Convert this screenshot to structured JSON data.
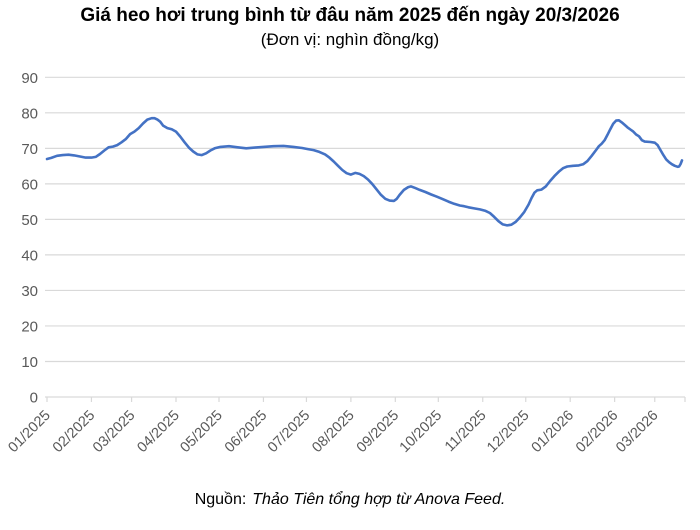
{
  "header": {
    "title": "Giá heo hơi trung bình từ đâu năm 2025 đến ngày 20/3/2026",
    "subtitle": "(Đơn vị: nghìn đồng/kg)"
  },
  "footer": {
    "source_label": "Nguồn:",
    "source_text": "Thảo Tiên tổng hợp từ Anova Feed."
  },
  "chart_data": {
    "type": "line",
    "title": "Giá heo hơi trung bình từ đâu năm 2025 đến ngày 20/3/2026",
    "subtitle": "(Đơn vị: nghìn đồng/kg)",
    "xlabel": "",
    "ylabel": "",
    "unit": "nghìn đồng/kg",
    "ylim": [
      0,
      90
    ],
    "yticks": [
      0,
      10,
      20,
      30,
      40,
      50,
      60,
      70,
      80,
      90
    ],
    "categories": [
      "01/2025",
      "02/2025",
      "03/2025",
      "04/2025",
      "05/2025",
      "06/2025",
      "07/2025",
      "08/2025",
      "09/2025",
      "10/2025",
      "11/2025",
      "12/2025",
      "01/2026",
      "02/2026",
      "03/2026"
    ],
    "x_range": [
      "2025-01-01",
      "2026-03-20"
    ],
    "grid": true,
    "legend": "none",
    "line_color": "#4472c4",
    "grid_color": "#d9d9d9",
    "tick_label_color": "#595959",
    "series": [
      {
        "points": [
          [
            "2025-01-01",
            67.0
          ],
          [
            "2025-01-04",
            67.3
          ],
          [
            "2025-01-08",
            67.9
          ],
          [
            "2025-01-12",
            68.1
          ],
          [
            "2025-01-16",
            68.2
          ],
          [
            "2025-01-20",
            68.0
          ],
          [
            "2025-01-24",
            67.7
          ],
          [
            "2025-01-28",
            67.4
          ],
          [
            "2025-02-01",
            67.4
          ],
          [
            "2025-02-04",
            67.6
          ],
          [
            "2025-02-07",
            68.4
          ],
          [
            "2025-02-10",
            69.4
          ],
          [
            "2025-02-13",
            70.3
          ],
          [
            "2025-02-16",
            70.5
          ],
          [
            "2025-02-19",
            70.9
          ],
          [
            "2025-02-22",
            71.7
          ],
          [
            "2025-02-25",
            72.6
          ],
          [
            "2025-02-28",
            74.0
          ],
          [
            "2025-03-03",
            74.7
          ],
          [
            "2025-03-06",
            75.7
          ],
          [
            "2025-03-09",
            77.0
          ],
          [
            "2025-03-12",
            78.1
          ],
          [
            "2025-03-15",
            78.5
          ],
          [
            "2025-03-17",
            78.5
          ],
          [
            "2025-03-19",
            78.1
          ],
          [
            "2025-03-21",
            77.5
          ],
          [
            "2025-03-23",
            76.4
          ],
          [
            "2025-03-26",
            75.7
          ],
          [
            "2025-03-29",
            75.4
          ],
          [
            "2025-04-01",
            74.7
          ],
          [
            "2025-04-04",
            73.3
          ],
          [
            "2025-04-07",
            71.7
          ],
          [
            "2025-04-10",
            70.2
          ],
          [
            "2025-04-13",
            69.1
          ],
          [
            "2025-04-16",
            68.3
          ],
          [
            "2025-04-19",
            68.1
          ],
          [
            "2025-04-22",
            68.6
          ],
          [
            "2025-04-25",
            69.4
          ],
          [
            "2025-04-28",
            70.0
          ],
          [
            "2025-05-02",
            70.4
          ],
          [
            "2025-05-08",
            70.6
          ],
          [
            "2025-05-14",
            70.3
          ],
          [
            "2025-05-20",
            70.0
          ],
          [
            "2025-05-26",
            70.2
          ],
          [
            "2025-06-01",
            70.4
          ],
          [
            "2025-06-08",
            70.6
          ],
          [
            "2025-06-15",
            70.7
          ],
          [
            "2025-06-22",
            70.4
          ],
          [
            "2025-06-28",
            70.1
          ],
          [
            "2025-07-02",
            69.8
          ],
          [
            "2025-07-06",
            69.5
          ],
          [
            "2025-07-10",
            69.0
          ],
          [
            "2025-07-14",
            68.3
          ],
          [
            "2025-07-17",
            67.4
          ],
          [
            "2025-07-20",
            66.3
          ],
          [
            "2025-07-23",
            65.1
          ],
          [
            "2025-07-26",
            63.9
          ],
          [
            "2025-07-29",
            63.0
          ],
          [
            "2025-08-01",
            62.6
          ],
          [
            "2025-08-04",
            63.1
          ],
          [
            "2025-08-07",
            62.8
          ],
          [
            "2025-08-10",
            62.2
          ],
          [
            "2025-08-13",
            61.2
          ],
          [
            "2025-08-16",
            59.9
          ],
          [
            "2025-08-19",
            58.4
          ],
          [
            "2025-08-22",
            56.9
          ],
          [
            "2025-08-25",
            55.8
          ],
          [
            "2025-08-28",
            55.3
          ],
          [
            "2025-08-31",
            55.2
          ],
          [
            "2025-09-02",
            55.8
          ],
          [
            "2025-09-04",
            56.9
          ],
          [
            "2025-09-07",
            58.3
          ],
          [
            "2025-09-10",
            59.1
          ],
          [
            "2025-09-12",
            59.3
          ],
          [
            "2025-09-15",
            58.8
          ],
          [
            "2025-09-18",
            58.3
          ],
          [
            "2025-09-22",
            57.7
          ],
          [
            "2025-09-26",
            57.0
          ],
          [
            "2025-09-30",
            56.4
          ],
          [
            "2025-10-04",
            55.7
          ],
          [
            "2025-10-08",
            55.0
          ],
          [
            "2025-10-12",
            54.4
          ],
          [
            "2025-10-16",
            53.9
          ],
          [
            "2025-10-19",
            53.7
          ],
          [
            "2025-10-22",
            53.4
          ],
          [
            "2025-10-26",
            53.1
          ],
          [
            "2025-10-30",
            52.8
          ],
          [
            "2025-11-03",
            52.4
          ],
          [
            "2025-11-06",
            51.8
          ],
          [
            "2025-11-09",
            50.7
          ],
          [
            "2025-11-12",
            49.5
          ],
          [
            "2025-11-15",
            48.6
          ],
          [
            "2025-11-18",
            48.3
          ],
          [
            "2025-11-21",
            48.5
          ],
          [
            "2025-11-24",
            49.3
          ],
          [
            "2025-11-27",
            50.6
          ],
          [
            "2025-11-30",
            52.1
          ],
          [
            "2025-12-03",
            54.2
          ],
          [
            "2025-12-05",
            56.0
          ],
          [
            "2025-12-07",
            57.5
          ],
          [
            "2025-12-09",
            58.2
          ],
          [
            "2025-12-12",
            58.4
          ],
          [
            "2025-12-15",
            59.3
          ],
          [
            "2025-12-18",
            60.8
          ],
          [
            "2025-12-21",
            62.2
          ],
          [
            "2025-12-24",
            63.4
          ],
          [
            "2025-12-27",
            64.4
          ],
          [
            "2025-12-30",
            64.9
          ],
          [
            "2026-01-03",
            65.1
          ],
          [
            "2026-01-07",
            65.2
          ],
          [
            "2026-01-10",
            65.5
          ],
          [
            "2026-01-13",
            66.4
          ],
          [
            "2026-01-16",
            67.9
          ],
          [
            "2026-01-19",
            69.5
          ],
          [
            "2026-01-21",
            70.6
          ],
          [
            "2026-01-23",
            71.3
          ],
          [
            "2026-01-25",
            72.3
          ],
          [
            "2026-01-27",
            73.8
          ],
          [
            "2026-01-29",
            75.4
          ],
          [
            "2026-01-31",
            76.9
          ],
          [
            "2026-02-02",
            77.8
          ],
          [
            "2026-02-04",
            77.9
          ],
          [
            "2026-02-06",
            77.3
          ],
          [
            "2026-02-08",
            76.6
          ],
          [
            "2026-02-10",
            75.9
          ],
          [
            "2026-02-12",
            75.3
          ],
          [
            "2026-02-14",
            74.7
          ],
          [
            "2026-02-16",
            73.9
          ],
          [
            "2026-02-18",
            73.4
          ],
          [
            "2026-02-20",
            72.3
          ],
          [
            "2026-02-22",
            71.9
          ],
          [
            "2026-02-26",
            71.8
          ],
          [
            "2026-03-01",
            71.6
          ],
          [
            "2026-03-03",
            70.9
          ],
          [
            "2026-03-05",
            69.5
          ],
          [
            "2026-03-07",
            68.1
          ],
          [
            "2026-03-09",
            66.9
          ],
          [
            "2026-03-11",
            66.1
          ],
          [
            "2026-03-13",
            65.5
          ],
          [
            "2026-03-15",
            65.1
          ],
          [
            "2026-03-17",
            64.8
          ],
          [
            "2026-03-18",
            64.9
          ],
          [
            "2026-03-19",
            65.6
          ],
          [
            "2026-03-20",
            66.6
          ]
        ]
      }
    ]
  }
}
